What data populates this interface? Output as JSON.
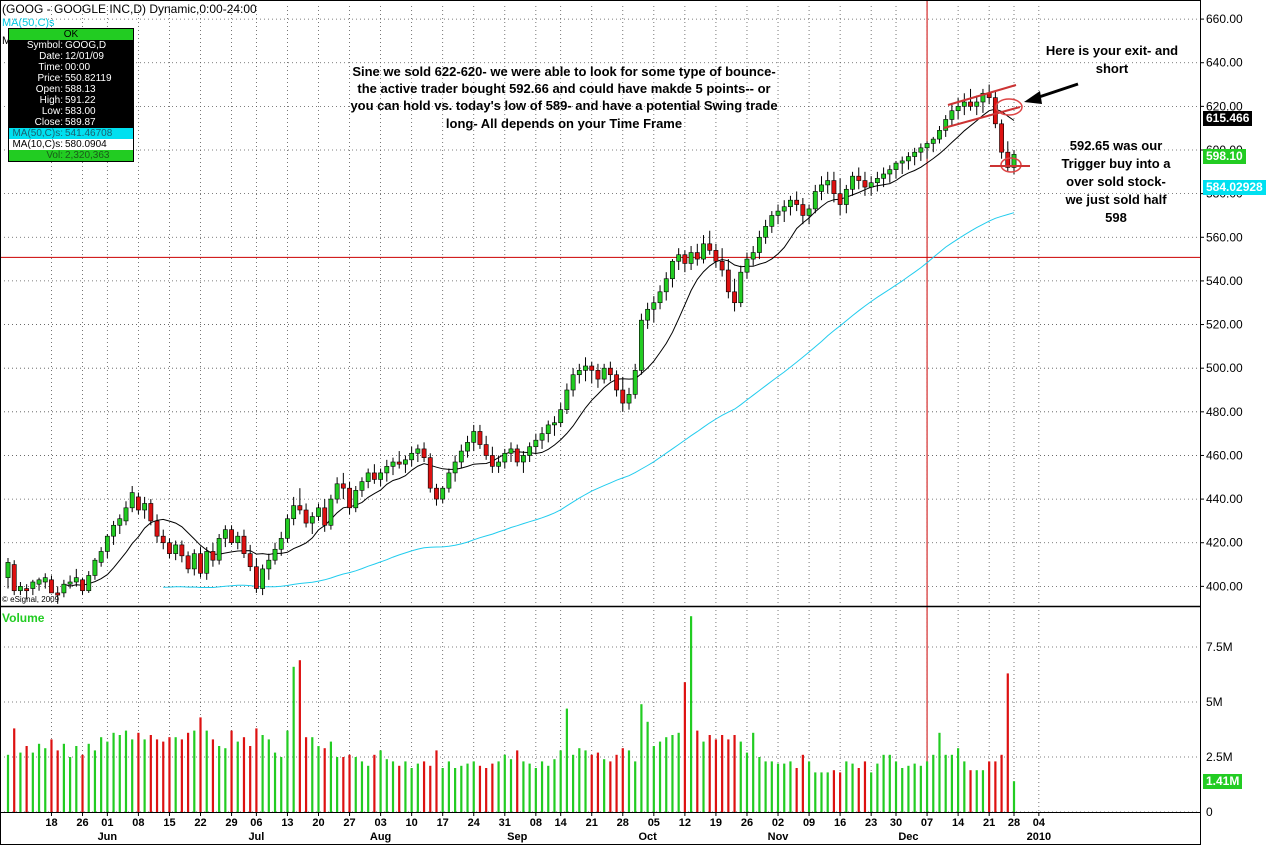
{
  "header": {
    "title": "(GOOG - GOOGLE INC,D) Dynamic,0:00-24:00",
    "ma50_short": "MA(50,C)s",
    "ma10_short": "M"
  },
  "data_window": {
    "header": "OK",
    "rows": [
      {
        "label": "Symbol:",
        "value": "GOOG,D"
      },
      {
        "label": "Date:",
        "value": "12/01/09"
      },
      {
        "label": "Time:",
        "value": "00:00"
      },
      {
        "label": "Price:",
        "value": "550.82119"
      },
      {
        "label": "Open:",
        "value": "588.13"
      },
      {
        "label": "High:",
        "value": "591.22"
      },
      {
        "label": "Low:",
        "value": "583.00"
      },
      {
        "label": "Close:",
        "value": "589.87"
      }
    ],
    "ma50": {
      "label": "MA(50,C)s:",
      "value": "541.46708"
    },
    "ma10": {
      "label": "MA(10,C)s:",
      "value": "580.0904"
    },
    "vol": {
      "label": "Vol:",
      "value": "2,320,363"
    }
  },
  "annotations": {
    "main": [
      "Sine we sold 622-620- we were able to look for some type of bounce-",
      "the active trader bought 592.66 and could have makde 5 points-- or",
      "you can hold vs. today's low of 589- and have a potential Swing trade",
      "long-  All depends on your Time Frame"
    ],
    "exit": [
      "Here is your exit- and",
      "short"
    ],
    "trigger": [
      "592.65 was our",
      "Trigger buy into a",
      "over sold stock-",
      "we just sold half",
      "598"
    ]
  },
  "copyright": "© eSignal, 2009",
  "volume_label": "Volume",
  "price_tags": {
    "ma10": {
      "text": "615.466",
      "color": "#000000",
      "text_color": "#ffffff"
    },
    "last": {
      "text": "598.10",
      "color": "#22cc22",
      "text_color": "#ffffff"
    },
    "ma50": {
      "text": "584.02928",
      "color": "#00e0f0",
      "text_color": "#ffffff"
    },
    "volume": {
      "text": "1.41M",
      "color": "#22cc22",
      "text_color": "#ffffff"
    }
  },
  "colors": {
    "up": "#22cc22",
    "down": "#dd1111",
    "ma50": "#22ccee",
    "ma10": "#000000",
    "crosshair": "#cc0000",
    "grid": "#555555"
  },
  "chart_data": {
    "type": "candlestick",
    "title": "(GOOG - GOOGLE INC,D) Dynamic,0:00-24:00",
    "y_ticks": [
      "400.00",
      "420.00",
      "440.00",
      "460.00",
      "480.00",
      "500.00",
      "520.00",
      "540.00",
      "560.00",
      "580.00",
      "600.00",
      "620.00",
      "640.00",
      "660.00"
    ],
    "ylim": [
      391,
      666
    ],
    "volume_ticks": [
      "0",
      "2.5M",
      "5M",
      "7.5M"
    ],
    "volume_ylim": [
      0,
      9
    ],
    "crosshair": {
      "price": 550.8,
      "date_index": 148
    },
    "x_day_labels": [
      {
        "label": "18",
        "i": 7
      },
      {
        "label": "26",
        "i": 12
      },
      {
        "label": "01",
        "i": 16
      },
      {
        "label": "08",
        "i": 21
      },
      {
        "label": "15",
        "i": 26
      },
      {
        "label": "22",
        "i": 31
      },
      {
        "label": "29",
        "i": 36
      },
      {
        "label": "06",
        "i": 40
      },
      {
        "label": "13",
        "i": 45
      },
      {
        "label": "20",
        "i": 50
      },
      {
        "label": "27",
        "i": 55
      },
      {
        "label": "03",
        "i": 60
      },
      {
        "label": "10",
        "i": 65
      },
      {
        "label": "17",
        "i": 70
      },
      {
        "label": "24",
        "i": 75
      },
      {
        "label": "31",
        "i": 80
      },
      {
        "label": "08",
        "i": 85
      },
      {
        "label": "14",
        "i": 89
      },
      {
        "label": "21",
        "i": 94
      },
      {
        "label": "28",
        "i": 99
      },
      {
        "label": "05",
        "i": 104
      },
      {
        "label": "12",
        "i": 109
      },
      {
        "label": "19",
        "i": 114
      },
      {
        "label": "26",
        "i": 119
      },
      {
        "label": "02",
        "i": 124
      },
      {
        "label": "09",
        "i": 129
      },
      {
        "label": "16",
        "i": 134
      },
      {
        "label": "23",
        "i": 139
      },
      {
        "label": "30",
        "i": 143
      },
      {
        "label": "07",
        "i": 148
      },
      {
        "label": "14",
        "i": 153
      },
      {
        "label": "21",
        "i": 158
      },
      {
        "label": "28",
        "i": 162
      },
      {
        "label": "04",
        "i": 166
      }
    ],
    "x_month_labels": [
      {
        "label": "Jun",
        "i": 16
      },
      {
        "label": "Jul",
        "i": 40
      },
      {
        "label": "Aug",
        "i": 60
      },
      {
        "label": "Sep",
        "i": 82
      },
      {
        "label": "Oct",
        "i": 103
      },
      {
        "label": "Nov",
        "i": 124
      },
      {
        "label": "Dec",
        "i": 145
      },
      {
        "label": "2010",
        "i": 166
      }
    ],
    "start_date": "2009-05-11",
    "candles": [
      [
        404,
        413,
        399,
        411,
        2.6
      ],
      [
        410,
        412,
        396,
        398,
        3.8
      ],
      [
        398,
        402,
        396,
        400,
        2.7
      ],
      [
        399,
        401,
        394,
        398,
        3.0
      ],
      [
        399,
        403,
        396,
        402,
        2.7
      ],
      [
        401,
        404,
        398,
        403,
        3.1
      ],
      [
        402,
        406,
        399,
        404,
        2.9
      ],
      [
        403,
        405,
        397,
        397,
        3.3
      ],
      [
        397,
        400,
        392,
        396,
        2.8
      ],
      [
        397,
        403,
        395,
        401,
        3.1
      ],
      [
        401,
        405,
        399,
        402,
        2.5
      ],
      [
        402,
        408,
        400,
        404,
        3.0
      ],
      [
        403,
        404,
        396,
        398,
        2.6
      ],
      [
        398,
        407,
        397,
        405,
        3.1
      ],
      [
        405,
        413,
        403,
        412,
        2.8
      ],
      [
        411,
        418,
        409,
        416,
        3.4
      ],
      [
        416,
        424,
        413,
        423,
        3.2
      ],
      [
        423,
        430,
        419,
        428,
        3.6
      ],
      [
        428,
        433,
        424,
        431,
        3.5
      ],
      [
        430,
        439,
        428,
        436,
        3.7
      ],
      [
        436,
        446,
        434,
        443,
        3.3
      ],
      [
        441,
        443,
        433,
        435,
        3.6
      ],
      [
        435,
        441,
        431,
        438,
        3.3
      ],
      [
        438,
        440,
        428,
        430,
        3.5
      ],
      [
        430,
        433,
        420,
        423,
        3.3
      ],
      [
        423,
        426,
        417,
        420,
        3.2
      ],
      [
        420,
        422,
        413,
        415,
        3.4
      ],
      [
        415,
        421,
        412,
        419,
        3.4
      ],
      [
        419,
        421,
        411,
        414,
        3.3
      ],
      [
        414,
        416,
        406,
        408,
        3.6
      ],
      [
        408,
        417,
        405,
        415,
        3.7
      ],
      [
        415,
        418,
        404,
        406,
        4.3
      ],
      [
        406,
        418,
        403,
        416,
        3.7
      ],
      [
        416,
        420,
        409,
        412,
        3.3
      ],
      [
        412,
        424,
        410,
        422,
        3.0
      ],
      [
        422,
        428,
        418,
        426,
        2.9
      ],
      [
        426,
        428,
        419,
        420,
        3.7
      ],
      [
        420,
        425,
        417,
        423,
        3.2
      ],
      [
        423,
        426,
        413,
        415,
        3.4
      ],
      [
        415,
        419,
        407,
        409,
        3.0
      ],
      [
        409,
        413,
        397,
        399,
        3.8
      ],
      [
        399,
        410,
        396,
        408,
        3.5
      ],
      [
        408,
        415,
        403,
        412,
        3.3
      ],
      [
        412,
        420,
        410,
        417,
        2.7
      ],
      [
        417,
        425,
        414,
        422,
        2.5
      ],
      [
        422,
        433,
        420,
        431,
        3.7
      ],
      [
        431,
        441,
        428,
        437,
        6.6
      ],
      [
        437,
        445,
        433,
        435,
        6.9
      ],
      [
        435,
        438,
        427,
        429,
        3.4
      ],
      [
        429,
        434,
        424,
        432,
        3.4
      ],
      [
        432,
        438,
        430,
        436,
        3.0
      ],
      [
        436,
        440,
        425,
        428,
        2.9
      ],
      [
        428,
        442,
        426,
        440,
        3.2
      ],
      [
        440,
        450,
        438,
        447,
        2.5
      ],
      [
        447,
        452,
        440,
        445,
        2.5
      ],
      [
        445,
        448,
        433,
        436,
        2.6
      ],
      [
        436,
        446,
        434,
        444,
        2.5
      ],
      [
        444,
        450,
        441,
        448,
        2.3
      ],
      [
        448,
        454,
        445,
        452,
        2.1
      ],
      [
        452,
        456,
        447,
        449,
        2.6
      ],
      [
        449,
        454,
        446,
        452,
        2.8
      ],
      [
        452,
        458,
        448,
        455,
        2.4
      ],
      [
        455,
        459,
        451,
        457,
        2.3
      ],
      [
        457,
        462,
        454,
        456,
        2.1
      ],
      [
        456,
        460,
        452,
        458,
        2.3
      ],
      [
        458,
        464,
        455,
        461,
        2.0
      ],
      [
        461,
        465,
        457,
        463,
        2.2
      ],
      [
        463,
        466,
        457,
        459,
        2.3
      ],
      [
        459,
        461,
        443,
        445,
        2.1
      ],
      [
        445,
        447,
        437,
        440,
        2.8
      ],
      [
        440,
        446,
        438,
        445,
        2.0
      ],
      [
        445,
        454,
        443,
        452,
        2.3
      ],
      [
        452,
        460,
        448,
        457,
        2.0
      ],
      [
        457,
        465,
        454,
        462,
        2.1
      ],
      [
        462,
        469,
        459,
        466,
        2.2
      ],
      [
        466,
        474,
        462,
        471,
        2.3
      ],
      [
        471,
        474,
        463,
        465,
        2.1
      ],
      [
        465,
        469,
        458,
        460,
        2.0
      ],
      [
        460,
        464,
        452,
        455,
        2.2
      ],
      [
        455,
        460,
        452,
        457,
        2.3
      ],
      [
        457,
        463,
        454,
        461,
        2.6
      ],
      [
        461,
        466,
        457,
        463,
        2.4
      ],
      [
        463,
        465,
        455,
        457,
        2.8
      ],
      [
        457,
        462,
        452,
        460,
        2.3
      ],
      [
        460,
        466,
        457,
        464,
        2.2
      ],
      [
        464,
        470,
        461,
        467,
        2.0
      ],
      [
        467,
        473,
        463,
        470,
        2.3
      ],
      [
        470,
        476,
        466,
        474,
        2.1
      ],
      [
        474,
        478,
        469,
        475,
        2.4
      ],
      [
        475,
        484,
        473,
        481,
        2.8
      ],
      [
        481,
        493,
        479,
        490,
        4.7
      ],
      [
        490,
        500,
        487,
        497,
        2.6
      ],
      [
        497,
        502,
        493,
        499,
        2.9
      ],
      [
        499,
        505,
        494,
        501,
        2.8
      ],
      [
        501,
        503,
        493,
        499,
        2.6
      ],
      [
        499,
        502,
        491,
        495,
        2.7
      ],
      [
        495,
        502,
        493,
        500,
        2.4
      ],
      [
        500,
        503,
        494,
        497,
        2.3
      ],
      [
        497,
        499,
        487,
        490,
        2.6
      ],
      [
        490,
        496,
        480,
        484,
        2.9
      ],
      [
        484,
        491,
        481,
        488,
        2.8
      ],
      [
        488,
        502,
        486,
        499,
        2.3
      ],
      [
        499,
        525,
        497,
        522,
        4.9
      ],
      [
        522,
        530,
        518,
        527,
        4.1
      ],
      [
        527,
        533,
        521,
        530,
        3.0
      ],
      [
        530,
        538,
        527,
        535,
        3.2
      ],
      [
        535,
        544,
        531,
        541,
        3.4
      ],
      [
        541,
        550,
        537,
        549,
        3.5
      ],
      [
        549,
        555,
        545,
        552,
        3.6
      ],
      [
        552,
        554,
        544,
        548,
        5.9
      ],
      [
        548,
        556,
        545,
        553,
        8.9
      ],
      [
        553,
        557,
        547,
        550,
        3.7
      ],
      [
        550,
        561,
        548,
        557,
        3.2
      ],
      [
        557,
        563,
        552,
        554,
        3.5
      ],
      [
        554,
        557,
        546,
        549,
        3.3
      ],
      [
        549,
        555,
        542,
        545,
        3.5
      ],
      [
        545,
        550,
        532,
        535,
        3.3
      ],
      [
        535,
        541,
        526,
        530,
        3.5
      ],
      [
        530,
        547,
        528,
        544,
        3.2
      ],
      [
        544,
        553,
        541,
        550,
        2.7
      ],
      [
        550,
        556,
        547,
        553,
        3.6
      ],
      [
        553,
        563,
        550,
        560,
        2.5
      ],
      [
        560,
        568,
        557,
        565,
        2.3
      ],
      [
        565,
        572,
        562,
        570,
        2.3
      ],
      [
        570,
        575,
        566,
        572,
        2.2
      ],
      [
        572,
        577,
        567,
        574,
        2.2
      ],
      [
        574,
        579,
        570,
        577,
        2.3
      ],
      [
        577,
        581,
        572,
        575,
        2.0
      ],
      [
        575,
        578,
        566,
        570,
        2.6
      ],
      [
        570,
        575,
        566,
        573,
        2.3
      ],
      [
        573,
        584,
        571,
        581,
        1.8
      ],
      [
        581,
        588,
        577,
        584,
        1.8
      ],
      [
        584,
        590,
        580,
        586,
        1.8
      ],
      [
        586,
        590,
        576,
        580,
        1.9
      ],
      [
        580,
        587,
        570,
        575,
        1.8
      ],
      [
        575,
        584,
        571,
        582,
        2.3
      ],
      [
        582,
        590,
        579,
        588,
        2.2
      ],
      [
        588,
        592,
        582,
        586,
        2.0
      ],
      [
        586,
        590,
        579,
        583,
        2.3
      ],
      [
        583,
        588,
        579,
        585,
        1.8
      ],
      [
        585,
        590,
        581,
        587,
        2.2
      ],
      [
        587,
        592,
        583,
        589,
        2.6
      ],
      [
        589,
        593,
        585,
        591,
        2.6
      ],
      [
        591,
        595,
        587,
        594,
        2.3
      ],
      [
        594,
        597,
        589,
        595,
        2.0
      ],
      [
        595,
        599,
        591,
        597,
        2.1
      ],
      [
        597,
        601,
        593,
        599,
        2.2
      ],
      [
        599,
        603,
        595,
        601,
        2.1
      ],
      [
        601,
        604,
        596,
        603,
        2.3
      ],
      [
        603,
        606,
        599,
        605,
        2.6
      ],
      [
        605,
        611,
        603,
        609,
        3.6
      ],
      [
        609,
        616,
        606,
        614,
        2.6
      ],
      [
        614,
        621,
        611,
        618,
        2.6
      ],
      [
        618,
        624,
        614,
        620,
        2.9
      ],
      [
        620,
        626,
        616,
        622,
        2.3
      ],
      [
        622,
        628,
        618,
        620,
        1.9
      ],
      [
        620,
        625,
        616,
        622,
        1.9
      ],
      [
        622,
        628,
        617,
        626,
        1.9
      ],
      [
        626,
        630,
        621,
        624,
        2.3
      ],
      [
        624,
        627,
        610,
        612,
        2.3
      ],
      [
        612,
        614,
        596,
        599,
        2.6
      ],
      [
        599,
        604,
        590,
        592,
        6.3
      ],
      [
        592,
        600,
        589,
        598,
        1.4
      ]
    ]
  }
}
